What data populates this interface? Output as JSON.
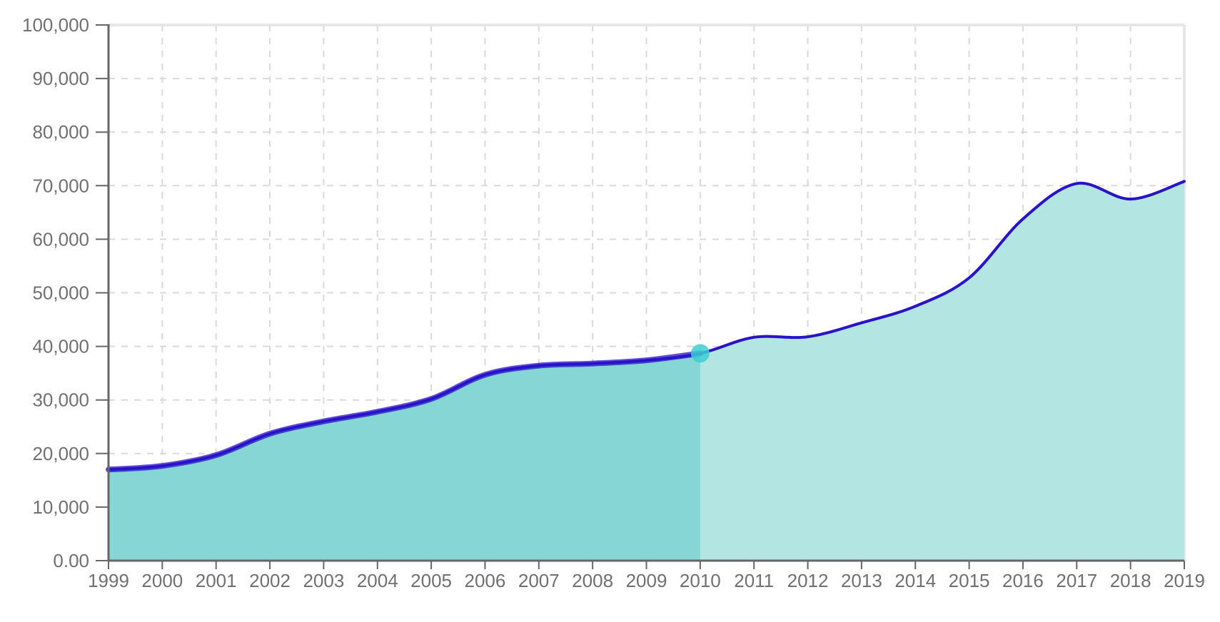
{
  "chart_data": {
    "type": "area",
    "title": "",
    "xlabel": "",
    "ylabel": "",
    "x": [
      1999,
      2000,
      2001,
      2002,
      2003,
      2004,
      2005,
      2006,
      2007,
      2008,
      2009,
      2010,
      2011,
      2012,
      2013,
      2014,
      2015,
      2016,
      2017,
      2018,
      2019
    ],
    "x_tick_labels": [
      "1999",
      "2000",
      "2001",
      "2002",
      "2003",
      "2004",
      "2005",
      "2006",
      "2007",
      "2008",
      "2009",
      "2010",
      "2011",
      "2012",
      "2013",
      "2014",
      "2015",
      "2016",
      "2017",
      "2018",
      "2019"
    ],
    "values": [
      17000,
      17700,
      19700,
      23700,
      26000,
      27800,
      30200,
      34700,
      36400,
      36800,
      37400,
      38700,
      41700,
      41800,
      44400,
      47500,
      52800,
      63800,
      70400,
      67500,
      70800
    ],
    "ylim": [
      0,
      100000
    ],
    "y_ticks": [
      0,
      10000,
      20000,
      30000,
      40000,
      50000,
      60000,
      70000,
      80000,
      90000,
      100000
    ],
    "y_tick_labels": [
      "0.00",
      "10,000",
      "20,000",
      "30,000",
      "40,000",
      "50,000",
      "60,000",
      "70,000",
      "80,000",
      "90,000",
      "100,000"
    ],
    "highlight_index": 11,
    "grid": true,
    "legend": "none",
    "colors": {
      "line": "#2a12c9",
      "area_active": "#86d6d5",
      "area_rest": "#b3e5e3",
      "marker": "#3ccfd1"
    }
  }
}
